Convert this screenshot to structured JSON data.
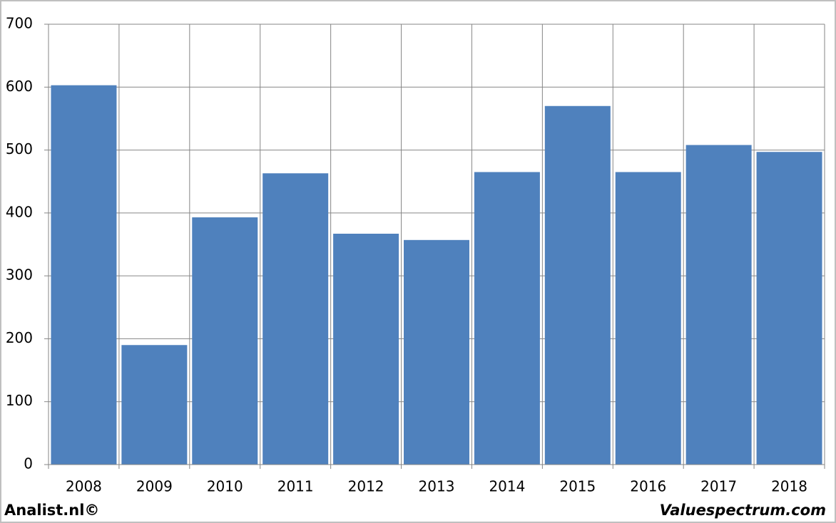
{
  "chart_data": {
    "type": "bar",
    "categories": [
      "2008",
      "2009",
      "2010",
      "2011",
      "2012",
      "2013",
      "2014",
      "2015",
      "2016",
      "2017",
      "2018"
    ],
    "values": [
      603,
      190,
      393,
      463,
      367,
      357,
      465,
      570,
      465,
      508,
      497
    ],
    "color": "#4f81bd",
    "ylim": [
      0,
      700
    ],
    "yticks": [
      0,
      100,
      200,
      300,
      400,
      500,
      600,
      700
    ],
    "grid": true,
    "source_left": "Analist.nl©",
    "source_right": "Valuespectrum.com"
  }
}
